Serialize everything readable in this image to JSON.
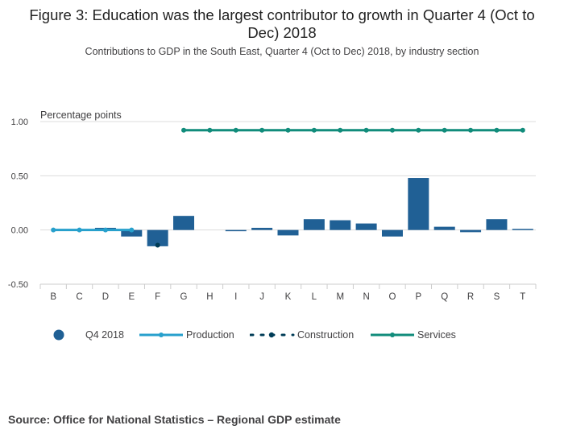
{
  "title": "Figure 3: Education was the largest contributor to growth in Quarter 4 (Oct to Dec) 2018",
  "subtitle": "Contributions to GDP in the South East, Quarter 4 (Oct to Dec) 2018, by industry section",
  "source": "Source: Office for National Statistics – Regional GDP estimate",
  "colors": {
    "bar": "#206095",
    "production": "#27a0cc",
    "construction": "#003c57",
    "services": "#118c7b",
    "grid": "#dcdcdc",
    "axis": "#cccccc"
  },
  "chart_data": {
    "type": "bar",
    "ylabel": "Percentage points",
    "ylim": [
      -0.5,
      1.0
    ],
    "yticks": [
      1.0,
      0.5,
      0.0,
      -0.5
    ],
    "ytick_labels": [
      "1.00",
      "0.50",
      "0.00",
      "-0.50"
    ],
    "categories": [
      "B",
      "C",
      "D",
      "E",
      "F",
      "G",
      "H",
      "I",
      "J",
      "K",
      "L",
      "M",
      "N",
      "O",
      "P",
      "Q",
      "R",
      "S",
      "T"
    ],
    "series": [
      {
        "name": "Q4 2018",
        "kind": "bar",
        "values": [
          0.0,
          0.0,
          0.02,
          -0.06,
          -0.15,
          0.13,
          0.0,
          -0.01,
          0.02,
          -0.05,
          0.1,
          0.09,
          0.06,
          -0.06,
          0.48,
          0.03,
          -0.02,
          0.1,
          0.01
        ]
      },
      {
        "name": "Production",
        "kind": "line",
        "values": [
          0.0,
          0.0,
          0.0,
          0.0,
          null,
          null,
          null,
          null,
          null,
          null,
          null,
          null,
          null,
          null,
          null,
          null,
          null,
          null,
          null
        ]
      },
      {
        "name": "Construction",
        "kind": "dotted-line",
        "values": [
          null,
          null,
          null,
          null,
          -0.14,
          null,
          null,
          null,
          null,
          null,
          null,
          null,
          null,
          null,
          null,
          null,
          null,
          null,
          null
        ]
      },
      {
        "name": "Services",
        "kind": "line",
        "values": [
          null,
          null,
          null,
          null,
          null,
          0.92,
          0.92,
          0.92,
          0.92,
          0.92,
          0.92,
          0.92,
          0.92,
          0.92,
          0.92,
          0.92,
          0.92,
          0.92,
          0.92
        ]
      }
    ],
    "legend": [
      "Q4 2018",
      "Production",
      "Construction",
      "Services"
    ]
  }
}
